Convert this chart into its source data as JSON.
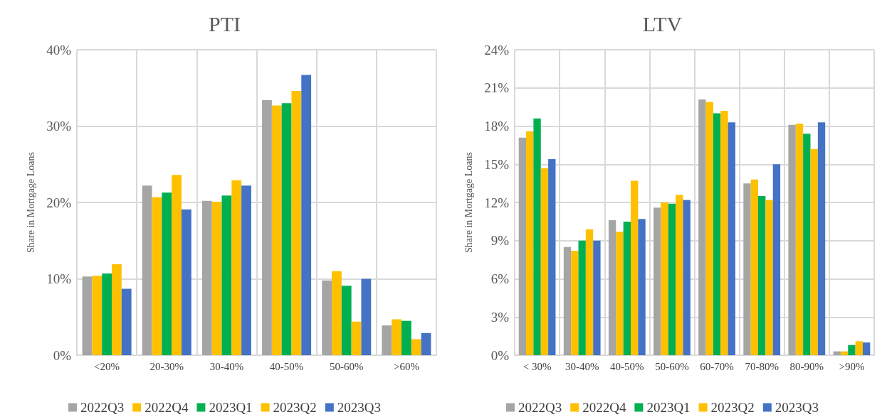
{
  "chart_data": [
    {
      "type": "bar",
      "title": "PTI",
      "ylabel": "Share in Mortgage Loans",
      "categories": [
        "<20%",
        "20-30%",
        "30-40%",
        "40-50%",
        "50-60%",
        ">60%"
      ],
      "series": [
        {
          "name": "2022Q3",
          "color": "#a5a5a5",
          "values": [
            10.3,
            22.2,
            20.2,
            33.4,
            9.8,
            3.9
          ]
        },
        {
          "name": "2022Q4",
          "color": "#ffc000",
          "values": [
            10.4,
            20.7,
            20.1,
            32.7,
            11.0,
            4.7
          ]
        },
        {
          "name": "2023Q1",
          "color": "#00b050",
          "values": [
            10.7,
            21.3,
            20.9,
            33.0,
            9.1,
            4.5
          ]
        },
        {
          "name": "2023Q2",
          "color": "#ffc000",
          "values": [
            11.9,
            23.6,
            22.9,
            34.6,
            4.4,
            2.1
          ]
        },
        {
          "name": "2023Q3",
          "color": "#4472c4",
          "values": [
            8.7,
            19.1,
            22.2,
            36.7,
            10.0,
            2.9
          ]
        }
      ],
      "ylim": [
        0,
        40
      ],
      "yticks": [
        {
          "value": 0,
          "label": "0%"
        },
        {
          "value": 10,
          "label": "10%"
        },
        {
          "value": 20,
          "label": "20%"
        },
        {
          "value": 30,
          "label": "30%"
        },
        {
          "value": 40,
          "label": "40%"
        }
      ],
      "grid": true,
      "legend": "bottom"
    },
    {
      "type": "bar",
      "title": "LTV",
      "ylabel": "Share in Mortgage Loans",
      "categories": [
        "< 30%",
        "30-40%",
        "40-50%",
        "50-60%",
        "60-70%",
        "70-80%",
        "80-90%",
        ">90%"
      ],
      "series": [
        {
          "name": "2022Q3",
          "color": "#a5a5a5",
          "values": [
            17.1,
            8.5,
            10.6,
            11.6,
            20.1,
            13.5,
            18.1,
            0.3
          ]
        },
        {
          "name": "2022Q4",
          "color": "#ffc000",
          "values": [
            17.6,
            8.2,
            9.7,
            12.0,
            19.9,
            13.8,
            18.2,
            0.3
          ]
        },
        {
          "name": "2023Q1",
          "color": "#00b050",
          "values": [
            18.6,
            9.0,
            10.5,
            11.9,
            19.0,
            12.5,
            17.4,
            0.8
          ]
        },
        {
          "name": "2023Q2",
          "color": "#ffc000",
          "values": [
            14.7,
            9.9,
            13.7,
            12.6,
            19.2,
            12.2,
            16.2,
            1.1
          ]
        },
        {
          "name": "2023Q3",
          "color": "#4472c4",
          "values": [
            15.4,
            9.0,
            10.7,
            12.2,
            18.3,
            15.0,
            18.3,
            1.0
          ]
        }
      ],
      "ylim": [
        0,
        24
      ],
      "yticks": [
        {
          "value": 0,
          "label": "0%"
        },
        {
          "value": 3,
          "label": "3%"
        },
        {
          "value": 6,
          "label": "6%"
        },
        {
          "value": 9,
          "label": "9%"
        },
        {
          "value": 12,
          "label": "12%"
        },
        {
          "value": 15,
          "label": "15%"
        },
        {
          "value": 18,
          "label": "18%"
        },
        {
          "value": 21,
          "label": "21%"
        },
        {
          "value": 24,
          "label": "24%"
        }
      ],
      "grid": true,
      "legend": "bottom"
    }
  ]
}
